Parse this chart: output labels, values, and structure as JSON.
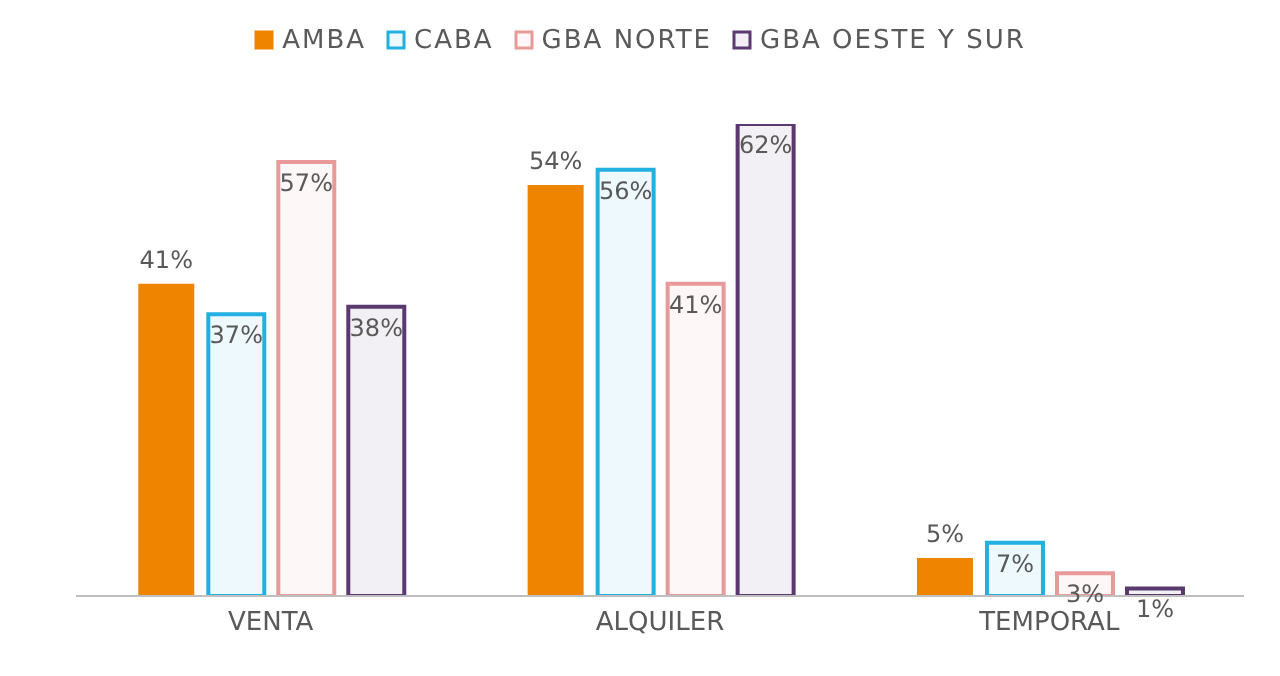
{
  "chart_data": {
    "type": "bar",
    "categories": [
      "VENTA",
      "ALQUILER",
      "TEMPORAL"
    ],
    "series": [
      {
        "name": "AMBA",
        "color": "#ee8400",
        "values": [
          41,
          54,
          5
        ],
        "value_labels": [
          "41%",
          "54%",
          "5%"
        ]
      },
      {
        "name": "CABA",
        "color": "#22b0e0",
        "values": [
          37,
          56,
          7
        ],
        "value_labels": [
          "37%",
          "56%",
          "7%"
        ]
      },
      {
        "name": "GBA NORTE",
        "color": "#e89a9a",
        "values": [
          57,
          41,
          3
        ],
        "value_labels": [
          "57%",
          "41%",
          "3%"
        ]
      },
      {
        "name": "GBA OESTE Y SUR",
        "color": "#5a3a6e",
        "values": [
          38,
          62,
          1
        ],
        "value_labels": [
          "38%",
          "62%",
          "1%"
        ]
      }
    ],
    "legend": "top"
  }
}
